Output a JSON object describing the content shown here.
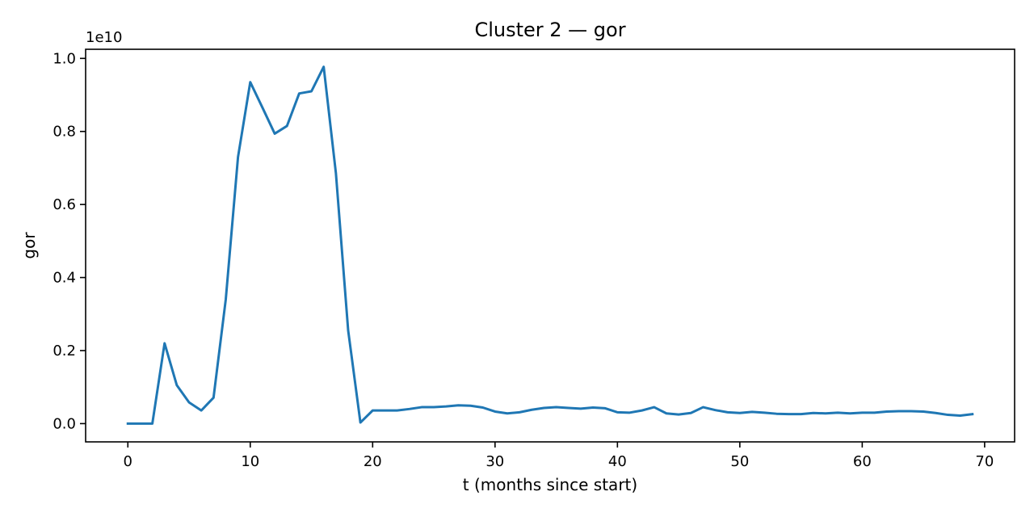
{
  "chart_data": {
    "type": "line",
    "title": "Cluster 2 — gor",
    "xlabel": "t (months since start)",
    "ylabel": "gor",
    "y_offset_label": "1e10",
    "y_multiplier": 10000000000,
    "xlim": [
      -3.45,
      72.45
    ],
    "ylim": [
      -0.05,
      1.025
    ],
    "xticks": [
      0,
      10,
      20,
      30,
      40,
      50,
      60,
      70
    ],
    "xtick_labels": [
      "0",
      "10",
      "20",
      "30",
      "40",
      "50",
      "60",
      "70"
    ],
    "yticks": [
      0.0,
      0.2,
      0.4,
      0.6,
      0.8,
      1.0
    ],
    "ytick_labels": [
      "0.0",
      "0.2",
      "0.4",
      "0.6",
      "0.8",
      "1.0"
    ],
    "grid": false,
    "line_color": "#1f77b4",
    "series": [
      {
        "x": [
          0,
          1,
          2,
          3,
          4,
          5,
          6,
          7,
          8,
          9,
          10,
          11,
          12,
          13,
          14,
          15,
          16,
          17,
          18,
          19,
          20,
          21,
          22,
          23,
          24,
          25,
          26,
          27,
          28,
          29,
          30,
          31,
          32,
          33,
          34,
          35,
          36,
          37,
          38,
          39,
          40,
          41,
          42,
          43,
          44,
          45,
          46,
          47,
          48,
          49,
          50,
          51,
          52,
          53,
          54,
          55,
          56,
          57,
          58,
          59,
          60,
          61,
          62,
          63,
          64,
          65,
          66,
          67,
          68,
          69
        ],
        "values": [
          0.0,
          0.0,
          0.0,
          0.22,
          0.105,
          0.058,
          0.036,
          0.071,
          0.34,
          0.73,
          0.935,
          0.865,
          0.794,
          0.815,
          0.904,
          0.91,
          0.977,
          0.685,
          0.255,
          0.003,
          0.036,
          0.036,
          0.036,
          0.04,
          0.045,
          0.045,
          0.047,
          0.05,
          0.049,
          0.044,
          0.033,
          0.028,
          0.031,
          0.038,
          0.043,
          0.045,
          0.043,
          0.041,
          0.044,
          0.042,
          0.031,
          0.03,
          0.036,
          0.045,
          0.028,
          0.025,
          0.029,
          0.045,
          0.037,
          0.031,
          0.029,
          0.032,
          0.03,
          0.027,
          0.026,
          0.026,
          0.029,
          0.028,
          0.03,
          0.028,
          0.03,
          0.03,
          0.033,
          0.034,
          0.034,
          0.033,
          0.029,
          0.024,
          0.022,
          0.026
        ]
      }
    ]
  }
}
